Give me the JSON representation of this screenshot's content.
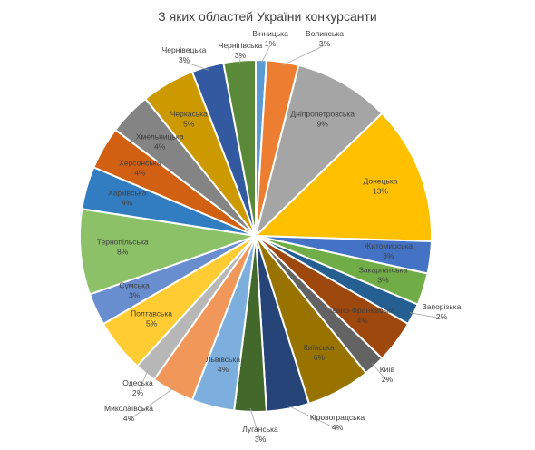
{
  "chart_data": {
    "type": "pie",
    "title": "З яких областей України конкурсанти",
    "legend": "none",
    "slices": [
      {
        "name": "Вінницька",
        "value": 1,
        "label": "1%",
        "color": "#5b9bd5"
      },
      {
        "name": "Волинська",
        "value": 3,
        "label": "3%",
        "color": "#ed7d31"
      },
      {
        "name": "Дніпропетровська",
        "value": 9,
        "label": "9%",
        "color": "#a5a5a5"
      },
      {
        "name": "Донецька",
        "value": 13,
        "label": "13%",
        "color": "#ffc000"
      },
      {
        "name": "Житомирська",
        "value": 3,
        "label": "3%",
        "color": "#4472c4"
      },
      {
        "name": "Закарпатська",
        "value": 3,
        "label": "3%",
        "color": "#70ad47"
      },
      {
        "name": "Запорізька",
        "value": 2,
        "label": "2%",
        "color": "#255e91"
      },
      {
        "name": "Івано-Франківська",
        "value": 4,
        "label": "4%",
        "color": "#9e480e"
      },
      {
        "name": "Київ",
        "value": 2,
        "label": "2%",
        "color": "#636363"
      },
      {
        "name": "Київська",
        "value": 6,
        "label": "6%",
        "color": "#997300"
      },
      {
        "name": "Кіровоградська",
        "value": 4,
        "label": "4%",
        "color": "#264478"
      },
      {
        "name": "Луганська",
        "value": 3,
        "label": "3%",
        "color": "#43682b"
      },
      {
        "name": "Львівська",
        "value": 4,
        "label": "4%",
        "color": "#7cafdd"
      },
      {
        "name": "Миколаївська",
        "value": 4,
        "label": "4%",
        "color": "#f1975a"
      },
      {
        "name": "Одеська",
        "value": 2,
        "label": "2%",
        "color": "#b7b7b7"
      },
      {
        "name": "Полтавська",
        "value": 5,
        "label": "5%",
        "color": "#ffcd33"
      },
      {
        "name": "Сумська",
        "value": 3,
        "label": "3%",
        "color": "#698ed0"
      },
      {
        "name": "Тернопільська",
        "value": 8,
        "label": "8%",
        "color": "#8cc168"
      },
      {
        "name": "Харківська",
        "value": 4,
        "label": "4%",
        "color": "#327dc2"
      },
      {
        "name": "Херсонська",
        "value": 4,
        "label": "4%",
        "color": "#d26012"
      },
      {
        "name": "Хмельницька",
        "value": 4,
        "label": "4%",
        "color": "#848484"
      },
      {
        "name": "Черкаська",
        "value": 5,
        "label": "5%",
        "color": "#cc9a00"
      },
      {
        "name": "Чернівецька",
        "value": 3,
        "label": "3%",
        "color": "#335aa1"
      },
      {
        "name": "Чернігівська",
        "value": 3,
        "label": "3%",
        "color": "#5a8a39"
      }
    ]
  }
}
